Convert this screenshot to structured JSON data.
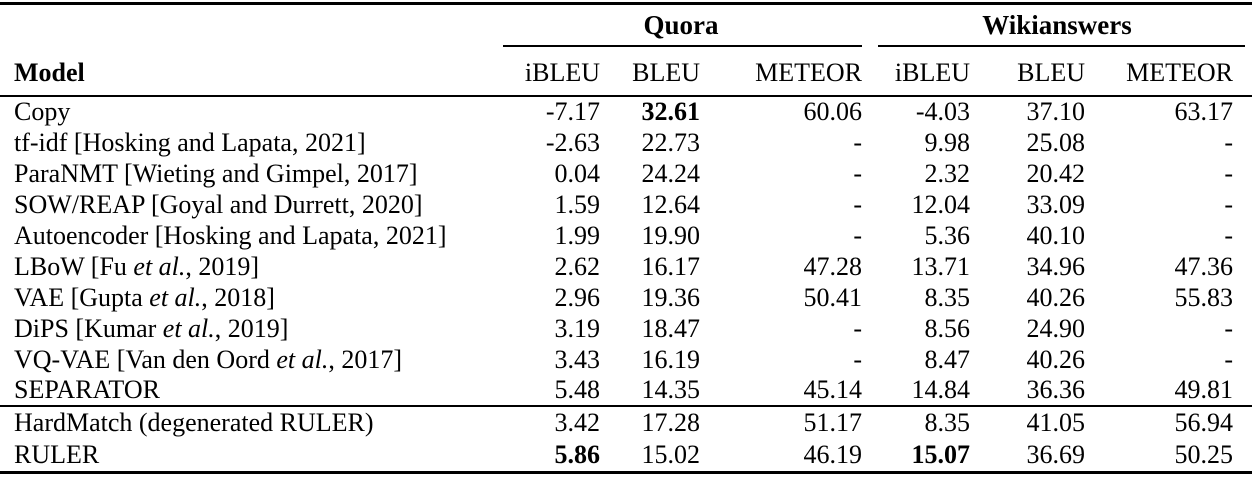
{
  "colors": {
    "background": "#ffffff",
    "text": "#000000",
    "rules": "#000000"
  },
  "table": {
    "groups": [
      {
        "label": "Quora"
      },
      {
        "label": "Wikianswers"
      }
    ],
    "model_header": "Model",
    "sub_headers": [
      "iBLEU",
      "BLEU",
      "METEOR",
      "iBLEU",
      "BLEU",
      "METEOR"
    ],
    "sections": [
      {
        "rows": [
          {
            "model": "Copy",
            "values": [
              "-7.17",
              "**32.61**",
              "60.06",
              "-4.03",
              "37.10",
              "63.17"
            ]
          },
          {
            "model": "tf-idf [Hosking and Lapata, 2021]",
            "values": [
              "-2.63",
              "22.73",
              "-",
              "9.98",
              "25.08",
              "-"
            ]
          },
          {
            "model": "ParaNMT [Wieting and Gimpel, 2017]",
            "values": [
              "0.04",
              "24.24",
              "-",
              "2.32",
              "20.42",
              "-"
            ]
          },
          {
            "model": "SOW/REAP [Goyal and Durrett, 2020]",
            "values": [
              "1.59",
              "12.64",
              "-",
              "12.04",
              "33.09",
              "-"
            ]
          },
          {
            "model": "Autoencoder [Hosking and Lapata, 2021]",
            "values": [
              "1.99",
              "19.90",
              "-",
              "5.36",
              "40.10",
              "-"
            ]
          },
          {
            "model": "LBoW [Fu *et al.*, 2019]",
            "values": [
              "2.62",
              "16.17",
              "47.28",
              "13.71",
              "34.96",
              "47.36"
            ]
          },
          {
            "model": "VAE [Gupta *et al.*, 2018]",
            "values": [
              "2.96",
              "19.36",
              "50.41",
              "8.35",
              "40.26",
              "55.83"
            ]
          },
          {
            "model": "DiPS [Kumar *et al.*, 2019]",
            "values": [
              "3.19",
              "18.47",
              "-",
              "8.56",
              "24.90",
              "-"
            ]
          },
          {
            "model": "VQ-VAE [Van den Oord *et al.*, 2017]",
            "values": [
              "3.43",
              "16.19",
              "-",
              "8.47",
              "40.26",
              "-"
            ]
          },
          {
            "model": "SEPARATOR",
            "values": [
              "5.48",
              "14.35",
              "45.14",
              "14.84",
              "36.36",
              "49.81"
            ]
          }
        ]
      },
      {
        "rows": [
          {
            "model": "HardMatch (degenerated RULER)",
            "values": [
              "3.42",
              "17.28",
              "51.17",
              "8.35",
              "41.05",
              "56.94"
            ]
          },
          {
            "model": "RULER",
            "values": [
              "**5.86**",
              "15.02",
              "46.19",
              "**15.07**",
              "36.69",
              "50.25"
            ]
          }
        ]
      }
    ]
  }
}
